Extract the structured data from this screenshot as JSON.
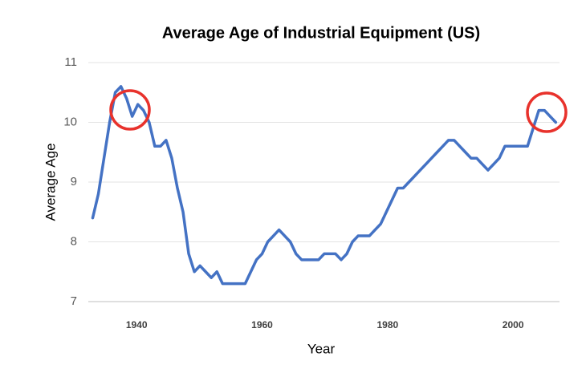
{
  "chart_data": {
    "type": "line",
    "title": "Average Age of Industrial Equipment (US)",
    "x_label": "Year",
    "y_label": "Average Age",
    "x": [
      1933,
      1933.9,
      1934.8,
      1935.7,
      1936.6,
      1937.5,
      1938.4,
      1939.3,
      1940.2,
      1941.1,
      1942,
      1942.9,
      1943.8,
      1944.7,
      1945.6,
      1946.5,
      1947.4,
      1948.3,
      1949.2,
      1950.1,
      1951,
      1951.9,
      1952.8,
      1953.7,
      1954.6,
      1955.5,
      1956.4,
      1957.3,
      1958.2,
      1959.1,
      1960,
      1960.9,
      1961.8,
      1962.7,
      1963.6,
      1964.5,
      1965.4,
      1966.3,
      1967.2,
      1968.1,
      1969,
      1969.9,
      1970.8,
      1971.7,
      1972.6,
      1973.5,
      1974.4,
      1975.3,
      1976.2,
      1977.1,
      1978,
      1978.9,
      1979.8,
      1980.7,
      1981.6,
      1982.5,
      1983.4,
      1984.3,
      1985.2,
      1986.1,
      1987,
      1987.9,
      1988.8,
      1989.7,
      1990.6,
      1991.5,
      1992.4,
      1993.3,
      1994.2,
      1995.1,
      1996,
      1996.9,
      1997.8,
      1998.7,
      1999.6,
      2000.5,
      2001.4,
      2002.3,
      2003.2,
      2004.1,
      2005,
      2005.9,
      2006.8
    ],
    "series": [
      {
        "name": "Average Age",
        "color": "#4472c4",
        "values": [
          8.4,
          8.8,
          9.4,
          10.0,
          10.5,
          10.6,
          10.4,
          10.1,
          10.3,
          10.2,
          10.0,
          9.6,
          9.6,
          9.7,
          9.4,
          8.9,
          8.5,
          7.8,
          7.5,
          7.6,
          7.5,
          7.4,
          7.5,
          7.3,
          7.3,
          7.3,
          7.3,
          7.3,
          7.5,
          7.7,
          7.8,
          8.0,
          8.1,
          8.2,
          8.1,
          8.0,
          7.8,
          7.7,
          7.7,
          7.7,
          7.7,
          7.8,
          7.8,
          7.8,
          7.7,
          7.8,
          8.0,
          8.1,
          8.1,
          8.1,
          8.2,
          8.3,
          8.5,
          8.7,
          8.9,
          8.9,
          9.0,
          9.1,
          9.2,
          9.3,
          9.4,
          9.5,
          9.6,
          9.7,
          9.7,
          9.6,
          9.5,
          9.4,
          9.4,
          9.3,
          9.2,
          9.3,
          9.4,
          9.6,
          9.6,
          9.6,
          9.6,
          9.6,
          9.9,
          10.2,
          10.2,
          10.1,
          10.0
        ]
      }
    ],
    "xlim": [
      1932.3,
      2007.4
    ],
    "xticks": [
      1940,
      1960,
      1980,
      2000
    ],
    "ylim": [
      7,
      11
    ],
    "yticks": [
      7,
      8,
      9,
      10,
      11
    ],
    "grid": true
  }
}
